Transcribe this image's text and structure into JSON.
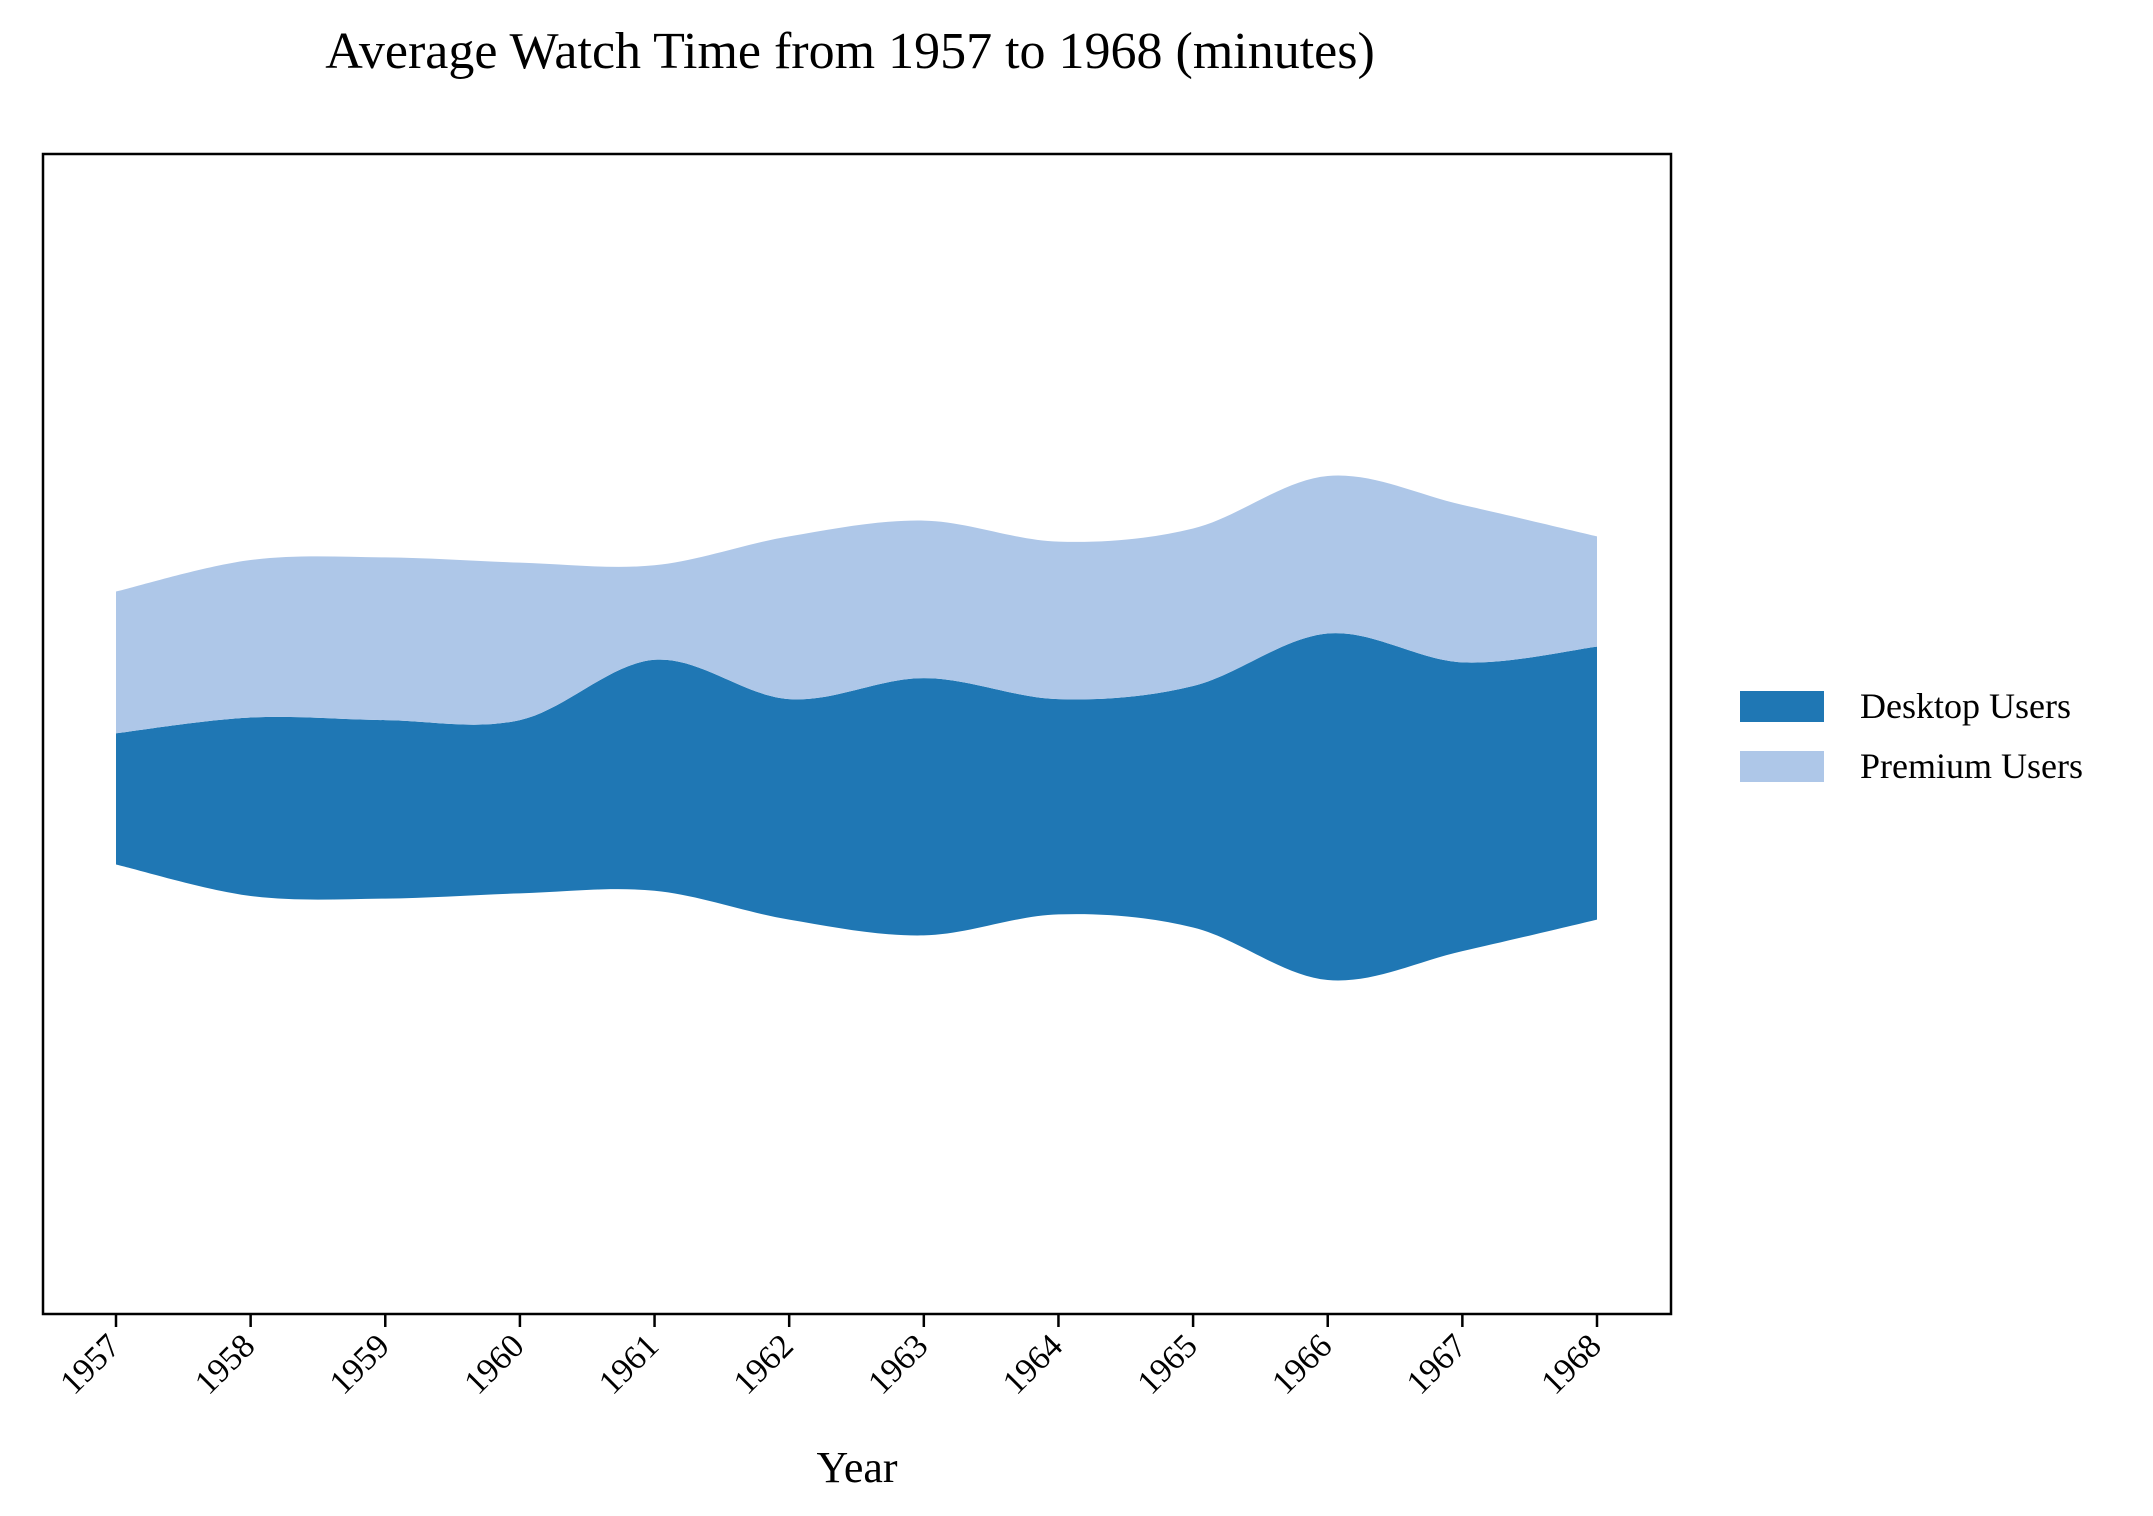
{
  "chart_data": {
    "type": "area",
    "subtype": "streamgraph",
    "title": "Average Watch Time from 1957 to 1968 (minutes)",
    "xlabel": "Year",
    "ylabel": "",
    "x": [
      1957,
      1958,
      1959,
      1960,
      1961,
      1962,
      1963,
      1964,
      1965,
      1966,
      1967,
      1968
    ],
    "series": [
      {
        "name": "Desktop Users",
        "color": "#1f77b4",
        "values": [
          25,
          34,
          34,
          33,
          44,
          42,
          49,
          41,
          46,
          66,
          55,
          52
        ]
      },
      {
        "name": "Premium Users",
        "color": "#aec7e8",
        "values": [
          27,
          30,
          31,
          30,
          18,
          31,
          30,
          30,
          30,
          30,
          30,
          21
        ]
      }
    ],
    "baseline": "symmetric",
    "grid": false,
    "legend_position": "center-right"
  }
}
